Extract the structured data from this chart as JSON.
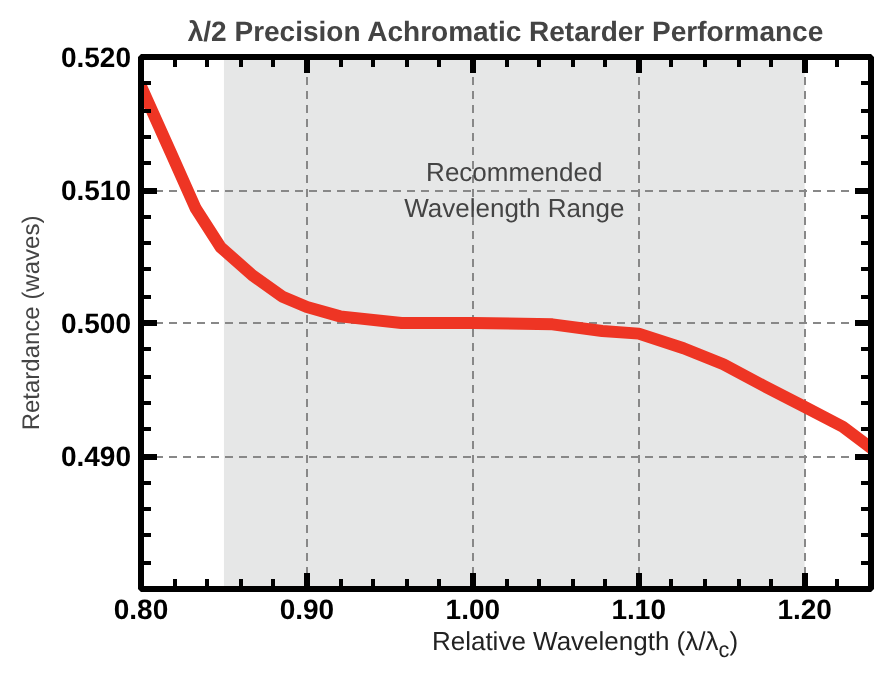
{
  "chart_data": {
    "type": "line",
    "title": "λ/2 Precision Achromatic Retarder Performance",
    "xlabel": "Relative Wavelength (λ/λ$_{c}$)",
    "ylabel": "Retardance (waves)",
    "series": [
      {
        "color": "#ee3524",
        "x": [
          0.8,
          0.818,
          0.833,
          0.848,
          0.867,
          0.885,
          0.9,
          0.92,
          0.957,
          1.0,
          1.048,
          1.078,
          1.1,
          1.127,
          1.151,
          1.175,
          1.2,
          1.223,
          1.24
        ],
        "values": [
          0.5178,
          0.5128,
          0.5086,
          0.5057,
          0.5036,
          0.502,
          0.5012,
          0.5005,
          0.5,
          0.5,
          0.4999,
          0.4994,
          0.4992,
          0.4981,
          0.4969,
          0.4953,
          0.4937,
          0.4922,
          0.4906
        ]
      }
    ],
    "xlim": [
      0.8,
      1.24
    ],
    "xticks": [
      {
        "value": 0.8,
        "label": "0.80"
      },
      {
        "value": 0.9,
        "label": "0.90"
      },
      {
        "value": 1.0,
        "label": "1.00"
      },
      {
        "value": 1.1,
        "label": "1.10"
      },
      {
        "value": 1.2,
        "label": "1.20"
      }
    ],
    "ylim": [
      0.48,
      0.52
    ],
    "yticks": [
      {
        "value": 0.48,
        "label": null
      },
      {
        "value": 0.49,
        "label": "0.490"
      },
      {
        "value": 0.5,
        "label": "0.500"
      },
      {
        "value": 0.51,
        "label": "0.510"
      },
      {
        "value": 0.52,
        "label": "0.520"
      }
    ],
    "bands": [
      {
        "axis": "x",
        "from": 0.85,
        "to": 1.2,
        "label": "Recommended Wavelength Range",
        "color": "#e6e7e7"
      }
    ],
    "grid": true,
    "line_style": "solid",
    "marker": "none"
  }
}
